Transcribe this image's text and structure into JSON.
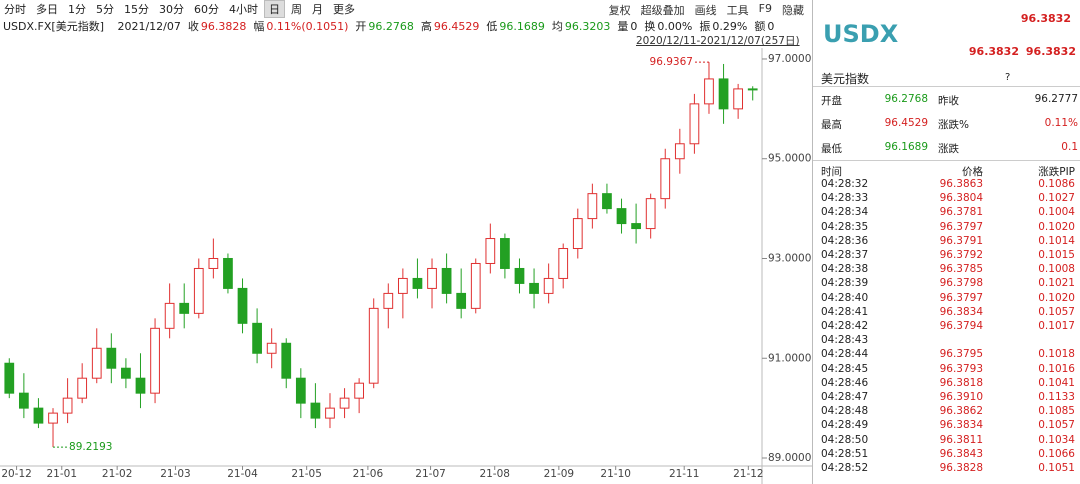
{
  "toolbar": {
    "left": [
      "分时",
      "多日",
      "1分",
      "5分",
      "15分",
      "30分",
      "60分",
      "4小时",
      "日",
      "周",
      "月",
      "更多"
    ],
    "active": "日",
    "right": [
      "复权",
      "超级叠加",
      "画线",
      "工具",
      "F9",
      "隐藏"
    ]
  },
  "info_line": {
    "symbol": "USDX.FX[美元指数]",
    "date": "2021/12/07",
    "items": [
      {
        "label": "收",
        "value": "96.3828",
        "color": "#d42020"
      },
      {
        "label": "幅",
        "value": "0.11%(0.1051)",
        "color": "#d42020"
      },
      {
        "label": "开",
        "value": "96.2768",
        "color": "#1a9a1a"
      },
      {
        "label": "高",
        "value": "96.4529",
        "color": "#d42020"
      },
      {
        "label": "低",
        "value": "96.1689",
        "color": "#1a9a1a"
      },
      {
        "label": "均",
        "value": "96.3203",
        "color": "#1a9a1a"
      },
      {
        "label": "量",
        "value": "0",
        "color": "#222"
      },
      {
        "label": "换",
        "value": "0.00%",
        "color": "#222"
      },
      {
        "label": "振",
        "value": "0.29%",
        "color": "#222"
      },
      {
        "label": "额",
        "value": "0",
        "color": "#222"
      }
    ]
  },
  "date_range": "2020/12/11-2021/12/07(257日)",
  "chart_data": {
    "type": "candlestick",
    "up_color": "#e03030",
    "down_color": "#23a023",
    "grid": false,
    "xlim": [
      -0.5,
      51.5
    ],
    "xticks": [
      {
        "value": 0.5,
        "label": "20-12"
      },
      {
        "value": 3.6,
        "label": "21-01"
      },
      {
        "value": 7.4,
        "label": "21-02"
      },
      {
        "value": 11.4,
        "label": "21-03"
      },
      {
        "value": 16.0,
        "label": "21-04"
      },
      {
        "value": 20.4,
        "label": "21-05"
      },
      {
        "value": 24.6,
        "label": "21-06"
      },
      {
        "value": 28.9,
        "label": "21-07"
      },
      {
        "value": 33.3,
        "label": "21-08"
      },
      {
        "value": 37.7,
        "label": "21-09"
      },
      {
        "value": 41.6,
        "label": "21-10"
      },
      {
        "value": 46.3,
        "label": "21-11"
      },
      {
        "value": 50.7,
        "label": "21-12"
      }
    ],
    "ylim": [
      88.92,
      97.22
    ],
    "yticks": [
      {
        "value": 89,
        "label": "89.0000"
      },
      {
        "value": 91,
        "label": "91.0000"
      },
      {
        "value": 93,
        "label": "93.0000"
      },
      {
        "value": 95,
        "label": "95.0000"
      },
      {
        "value": 97,
        "label": "97.0000"
      }
    ],
    "ohlc": [
      [
        90.9,
        91.0,
        90.2,
        90.3
      ],
      [
        90.3,
        90.7,
        89.8,
        90.0
      ],
      [
        90.0,
        90.2,
        89.6,
        89.7
      ],
      [
        89.7,
        90.0,
        89.2193,
        89.9
      ],
      [
        89.9,
        90.6,
        89.7,
        90.2
      ],
      [
        90.2,
        90.9,
        90.1,
        90.6
      ],
      [
        90.6,
        91.6,
        90.5,
        91.2
      ],
      [
        91.2,
        91.5,
        90.5,
        90.8
      ],
      [
        90.8,
        91.0,
        90.4,
        90.6
      ],
      [
        90.6,
        91.1,
        90.0,
        90.3
      ],
      [
        90.3,
        91.8,
        90.1,
        91.6
      ],
      [
        91.6,
        92.5,
        91.4,
        92.1
      ],
      [
        92.1,
        92.5,
        91.6,
        91.9
      ],
      [
        91.9,
        93.0,
        91.8,
        92.8
      ],
      [
        92.8,
        93.4,
        92.6,
        93.0
      ],
      [
        93.0,
        93.1,
        92.3,
        92.4
      ],
      [
        92.4,
        92.6,
        91.5,
        91.7
      ],
      [
        91.7,
        92.0,
        90.9,
        91.1
      ],
      [
        91.1,
        91.6,
        90.8,
        91.3
      ],
      [
        91.3,
        91.4,
        90.4,
        90.6
      ],
      [
        90.6,
        90.8,
        89.8,
        90.1
      ],
      [
        90.1,
        90.5,
        89.6,
        89.8
      ],
      [
        89.8,
        90.3,
        89.6,
        90.0
      ],
      [
        90.0,
        90.4,
        89.8,
        90.2
      ],
      [
        90.2,
        90.6,
        89.9,
        90.5
      ],
      [
        90.5,
        92.2,
        90.4,
        92.0
      ],
      [
        92.0,
        92.5,
        91.6,
        92.3
      ],
      [
        92.3,
        92.8,
        91.8,
        92.6
      ],
      [
        92.6,
        93.0,
        92.2,
        92.4
      ],
      [
        92.4,
        93.0,
        92.0,
        92.8
      ],
      [
        92.8,
        93.1,
        92.1,
        92.3
      ],
      [
        92.3,
        92.8,
        91.8,
        92.0
      ],
      [
        92.0,
        93.0,
        91.9,
        92.9
      ],
      [
        92.9,
        93.7,
        92.7,
        93.4
      ],
      [
        93.4,
        93.5,
        92.6,
        92.8
      ],
      [
        92.8,
        93.0,
        92.3,
        92.5
      ],
      [
        92.5,
        92.8,
        92.0,
        92.3
      ],
      [
        92.3,
        92.9,
        92.1,
        92.6
      ],
      [
        92.6,
        93.3,
        92.4,
        93.2
      ],
      [
        93.2,
        94.0,
        93.0,
        93.8
      ],
      [
        93.8,
        94.5,
        93.6,
        94.3
      ],
      [
        94.3,
        94.5,
        93.9,
        94.0
      ],
      [
        94.0,
        94.2,
        93.5,
        93.7
      ],
      [
        93.7,
        94.1,
        93.3,
        93.6
      ],
      [
        93.6,
        94.3,
        93.4,
        94.2
      ],
      [
        94.2,
        95.2,
        94.0,
        95.0
      ],
      [
        95.0,
        95.6,
        94.7,
        95.3
      ],
      [
        95.3,
        96.3,
        95.1,
        96.1
      ],
      [
        96.1,
        96.9367,
        95.9,
        96.6
      ],
      [
        96.6,
        96.9,
        95.7,
        96.0
      ],
      [
        96.0,
        96.5,
        95.8,
        96.4
      ],
      [
        96.4,
        96.4529,
        96.1689,
        96.3828
      ]
    ],
    "annotations": [
      {
        "x": 48,
        "value": 96.9367
      },
      {
        "x": 3,
        "value": 89.2193
      }
    ]
  },
  "quote": {
    "symbol": "USDX",
    "last": "96.3832",
    "bid": "96.3832",
    "ask": "96.3832",
    "name": "美元指数",
    "help": "?",
    "stats": [
      [
        "开盘",
        "96.2768",
        "昨收",
        "96.2777"
      ],
      [
        "最高",
        "96.4529",
        "涨跌%",
        "0.11%"
      ],
      [
        "最低",
        "96.1689",
        "涨跌",
        "0.1"
      ]
    ],
    "stat_colors": [
      "#1a9a1a",
      "#222",
      "#d42020",
      "#d42020",
      "#1a9a1a",
      "#d42020"
    ]
  },
  "ticks": {
    "header": [
      "时间",
      "价格",
      "涨跌PIP"
    ],
    "rows": [
      [
        "04:28:32",
        "96.3863",
        "0.1086"
      ],
      [
        "04:28:33",
        "96.3804",
        "0.1027"
      ],
      [
        "04:28:34",
        "96.3781",
        "0.1004"
      ],
      [
        "04:28:35",
        "96.3797",
        "0.1020"
      ],
      [
        "04:28:36",
        "96.3791",
        "0.1014"
      ],
      [
        "04:28:37",
        "96.3792",
        "0.1015"
      ],
      [
        "04:28:38",
        "96.3785",
        "0.1008"
      ],
      [
        "04:28:39",
        "96.3798",
        "0.1021"
      ],
      [
        "04:28:40",
        "96.3797",
        "0.1020"
      ],
      [
        "04:28:41",
        "96.3834",
        "0.1057"
      ],
      [
        "04:28:42",
        "96.3794",
        "0.1017"
      ],
      [
        "04:28:43"
      ],
      [
        "04:28:44",
        "96.3795",
        "0.1018"
      ],
      [
        "04:28:45",
        "96.3793",
        "0.1016"
      ],
      [
        "04:28:46",
        "96.3818",
        "0.1041"
      ],
      [
        "04:28:47",
        "96.3910",
        "0.1133"
      ],
      [
        "04:28:48",
        "96.3862",
        "0.1085"
      ],
      [
        "04:28:49",
        "96.3834",
        "0.1057"
      ],
      [
        "04:28:50",
        "96.3811",
        "0.1034"
      ],
      [
        "04:28:51",
        "96.3843",
        "0.1066"
      ],
      [
        "04:28:52",
        "96.3828",
        "0.1051"
      ]
    ]
  }
}
